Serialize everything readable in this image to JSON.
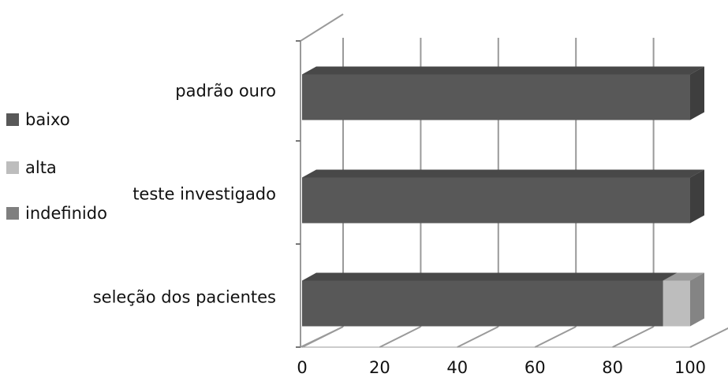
{
  "chart_data": {
    "type": "bar",
    "orientation": "horizontal",
    "stacked": true,
    "style_3d": true,
    "categories": [
      "padrão ouro",
      "teste investigado",
      "seleção dos pacientes"
    ],
    "series": [
      {
        "name": "baixo",
        "values": [
          100,
          100,
          93
        ],
        "color": "#585858"
      },
      {
        "name": "alta",
        "values": [
          0,
          0,
          7
        ],
        "color": "#bdbdbd"
      },
      {
        "name": "indefinido",
        "values": [
          0,
          0,
          0
        ],
        "color": "#7f7f7f"
      }
    ],
    "xlim": [
      0,
      100
    ],
    "x_ticks": [
      "0",
      "20",
      "40",
      "60",
      "80",
      "100"
    ],
    "grid": true,
    "legend_position": "left"
  }
}
